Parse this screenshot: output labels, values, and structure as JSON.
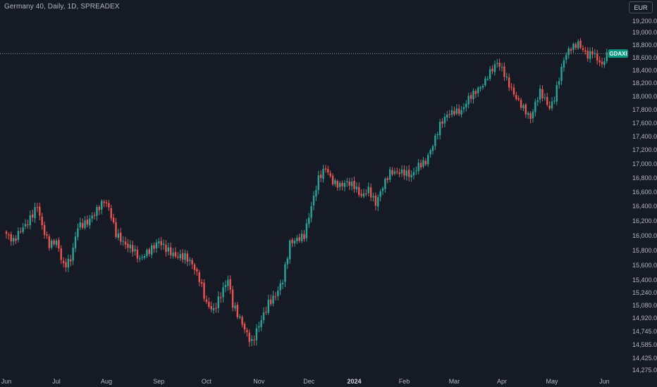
{
  "header": {
    "title": "Germany 40, Daily, 1D, SPREADEX",
    "currency": "EUR"
  },
  "colors": {
    "background": "#161a25",
    "up": "#26a69a",
    "down": "#ef5350",
    "price_line": "#9598a1",
    "badge": "#089981",
    "axis_text": "#b2b5be"
  },
  "chart_data": {
    "type": "candlestick",
    "title": "Germany 40, Daily, 1D, SPREADEX",
    "y_ticks": [
      "19,200.0",
      "19,000.0",
      "18,800.0",
      "18,600.0",
      "18,400.0",
      "18,200.0",
      "18,000.0",
      "17,800.0",
      "17,600.0",
      "17,400.0",
      "17,200.0",
      "17,000.0",
      "16,800.0",
      "16,600.0",
      "16,400.0",
      "16,200.0",
      "16,000.0",
      "15,800.0",
      "15,600.0",
      "15,400.0",
      "15,240.0",
      "15,080.0",
      "14,920.0",
      "14,745.0",
      "14,585.0",
      "14,425.0",
      "14,275.0"
    ],
    "x_ticks": [
      {
        "label": "Jun",
        "index": 0
      },
      {
        "label": "Jul",
        "index": 21
      },
      {
        "label": "Aug",
        "index": 42
      },
      {
        "label": "Sep",
        "index": 64
      },
      {
        "label": "Oct",
        "index": 84
      },
      {
        "label": "Nov",
        "index": 106
      },
      {
        "label": "Dec",
        "index": 127
      },
      {
        "label": "2024",
        "index": 146,
        "bold": true
      },
      {
        "label": "Feb",
        "index": 167
      },
      {
        "label": "Mar",
        "index": 188
      },
      {
        "label": "Apr",
        "index": 208
      },
      {
        "label": "May",
        "index": 229
      },
      {
        "label": "Jun",
        "index": 251
      }
    ],
    "last_price": 18665,
    "last_price_label": "GDAXI",
    "grid": false,
    "ylim": [
      14250,
      19300
    ],
    "anchors": [
      [
        0,
        16000
      ],
      [
        3,
        15900
      ],
      [
        6,
        16050
      ],
      [
        9,
        16150
      ],
      [
        13,
        16380
      ],
      [
        15,
        16100
      ],
      [
        18,
        15850
      ],
      [
        21,
        15900
      ],
      [
        24,
        15560
      ],
      [
        27,
        15650
      ],
      [
        30,
        16100
      ],
      [
        34,
        16150
      ],
      [
        38,
        16320
      ],
      [
        41,
        16450
      ],
      [
        43,
        16350
      ],
      [
        46,
        16000
      ],
      [
        50,
        15850
      ],
      [
        53,
        15800
      ],
      [
        56,
        15650
      ],
      [
        58,
        15720
      ],
      [
        61,
        15800
      ],
      [
        64,
        15900
      ],
      [
        67,
        15800
      ],
      [
        71,
        15700
      ],
      [
        75,
        15700
      ],
      [
        78,
        15600
      ],
      [
        81,
        15400
      ],
      [
        84,
        15080
      ],
      [
        87,
        15000
      ],
      [
        90,
        15200
      ],
      [
        93,
        15400
      ],
      [
        95,
        15080
      ],
      [
        98,
        14900
      ],
      [
        101,
        14700
      ],
      [
        103,
        14600
      ],
      [
        106,
        14820
      ],
      [
        110,
        15100
      ],
      [
        113,
        15200
      ],
      [
        116,
        15400
      ],
      [
        119,
        15900
      ],
      [
        122,
        15950
      ],
      [
        125,
        16000
      ],
      [
        128,
        16400
      ],
      [
        131,
        16800
      ],
      [
        134,
        16950
      ],
      [
        137,
        16750
      ],
      [
        140,
        16700
      ],
      [
        143,
        16750
      ],
      [
        146,
        16700
      ],
      [
        149,
        16550
      ],
      [
        152,
        16650
      ],
      [
        155,
        16450
      ],
      [
        158,
        16700
      ],
      [
        161,
        16900
      ],
      [
        164,
        16900
      ],
      [
        167,
        16900
      ],
      [
        170,
        16850
      ],
      [
        173,
        17000
      ],
      [
        176,
        17050
      ],
      [
        179,
        17300
      ],
      [
        182,
        17600
      ],
      [
        185,
        17750
      ],
      [
        188,
        17800
      ],
      [
        191,
        17800
      ],
      [
        194,
        18000
      ],
      [
        197,
        18100
      ],
      [
        200,
        18200
      ],
      [
        203,
        18400
      ],
      [
        206,
        18550
      ],
      [
        208,
        18450
      ],
      [
        211,
        18200
      ],
      [
        214,
        18000
      ],
      [
        216,
        17900
      ],
      [
        218,
        17800
      ],
      [
        220,
        17700
      ],
      [
        222,
        17920
      ],
      [
        224,
        18100
      ],
      [
        226,
        17980
      ],
      [
        228,
        17850
      ],
      [
        230,
        18000
      ],
      [
        232,
        18300
      ],
      [
        234,
        18600
      ],
      [
        236,
        18750
      ],
      [
        238,
        18800
      ],
      [
        240,
        18850
      ],
      [
        242,
        18750
      ],
      [
        244,
        18650
      ],
      [
        246,
        18720
      ],
      [
        248,
        18600
      ],
      [
        250,
        18500
      ],
      [
        251,
        18600
      ],
      [
        252,
        18665
      ]
    ]
  }
}
